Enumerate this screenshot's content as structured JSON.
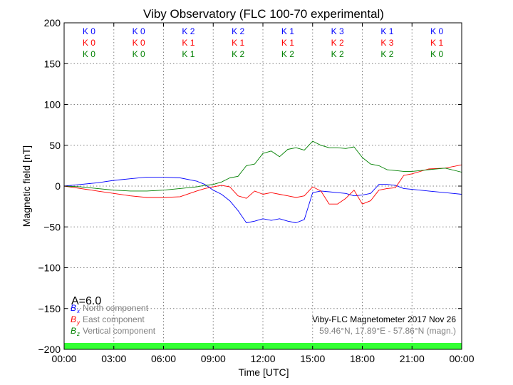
{
  "chart_data": {
    "type": "line",
    "title": "Viby Observatory (FLC 100-70 experimental)",
    "xlabel": "Time [UTC]",
    "ylabel": "Magnetic field [nT]",
    "xlim": [
      0,
      24
    ],
    "ylim": [
      -200,
      200
    ],
    "x_ticks": [
      "00:00",
      "03:00",
      "06:00",
      "09:00",
      "12:00",
      "15:00",
      "18:00",
      "21:00",
      "00:00"
    ],
    "y_ticks": [
      "200",
      "150",
      "100",
      "50",
      "0",
      "−50",
      "−100",
      "−150",
      "−200"
    ],
    "grid": true,
    "legend_position": "bottom-left",
    "series": [
      {
        "key": "bx",
        "symbol": "B",
        "sub": "x",
        "name": "North component",
        "color": "#0000ff",
        "x": [
          0,
          1,
          2,
          3,
          4,
          5,
          6,
          7,
          8,
          8.5,
          9,
          9.5,
          10,
          10.5,
          11,
          11.5,
          12,
          12.5,
          13,
          13.5,
          14,
          14.5,
          15,
          15.5,
          16,
          16.5,
          17,
          17.5,
          18,
          18.5,
          19,
          19.5,
          20,
          20.5,
          21,
          22,
          23,
          24
        ],
        "y": [
          0,
          2,
          4,
          7,
          9,
          11,
          11,
          10,
          6,
          2,
          -5,
          -10,
          -18,
          -30,
          -45,
          -43,
          -40,
          -42,
          -40,
          -43,
          -45,
          -41,
          -8,
          -6,
          -7,
          -8,
          -9,
          -12,
          -11,
          -9,
          2,
          2,
          1,
          -3,
          -4,
          -6,
          -8,
          -10
        ]
      },
      {
        "key": "by",
        "symbol": "B",
        "sub": "y",
        "name": "East component",
        "color": "#ff0000",
        "x": [
          0,
          1,
          2,
          3,
          4,
          5,
          6,
          7,
          8,
          8.5,
          9,
          9.5,
          10,
          10.5,
          11,
          11.5,
          12,
          12.5,
          13,
          13.5,
          14,
          14.5,
          15,
          15.5,
          16,
          16.5,
          17,
          17.5,
          18,
          18.5,
          19,
          19.5,
          20,
          20.5,
          21,
          22,
          23,
          24
        ],
        "y": [
          0,
          -3,
          -6,
          -9,
          -12,
          -14,
          -14,
          -13,
          -6,
          -3,
          -1,
          1,
          -1,
          -12,
          -15,
          -6,
          -10,
          -8,
          -10,
          -12,
          -14,
          -12,
          -1,
          -6,
          -22,
          -22,
          -15,
          -5,
          -22,
          -18,
          -5,
          -3,
          -2,
          13,
          15,
          21,
          22,
          26
        ]
      },
      {
        "key": "bz",
        "symbol": "B",
        "sub": "z",
        "name": "Vertical component",
        "color": "#008000",
        "x": [
          0,
          1,
          2,
          3,
          4,
          5,
          6,
          7,
          8,
          8.5,
          9,
          9.5,
          10,
          10.5,
          11,
          11.5,
          12,
          12.5,
          13,
          13.5,
          14,
          14.5,
          15,
          15.5,
          16,
          16.5,
          17,
          17.5,
          18,
          18.5,
          19,
          19.5,
          20,
          20.5,
          21,
          22,
          23,
          24
        ],
        "y": [
          0,
          -1,
          -3,
          -5,
          -6,
          -6,
          -5,
          -3,
          -1,
          1,
          2,
          5,
          10,
          12,
          25,
          27,
          40,
          43,
          36,
          45,
          47,
          44,
          55,
          50,
          47,
          47,
          46,
          48,
          35,
          27,
          25,
          20,
          19,
          18,
          18,
          20,
          22,
          17
        ]
      }
    ],
    "k_index": {
      "bx": [
        "K 0",
        "K 0",
        "K 2",
        "K 2",
        "K 1",
        "K 3",
        "K 1",
        "K 0"
      ],
      "by": [
        "K 0",
        "K 0",
        "K 1",
        "K 1",
        "K 1",
        "K 2",
        "K 3",
        "K 1"
      ],
      "bz": [
        "K 0",
        "K 0",
        "K 1",
        "K 2",
        "K 2",
        "K 2",
        "K 2",
        "K 0"
      ]
    },
    "a_index": "A=6.0",
    "info_line1": "Viby-FLC Magnetometer 2017 Nov 26",
    "info_line2": "59.46°N, 17.89°E - 57.86°N (magn.)",
    "status_bar_color": "#33ff33"
  }
}
